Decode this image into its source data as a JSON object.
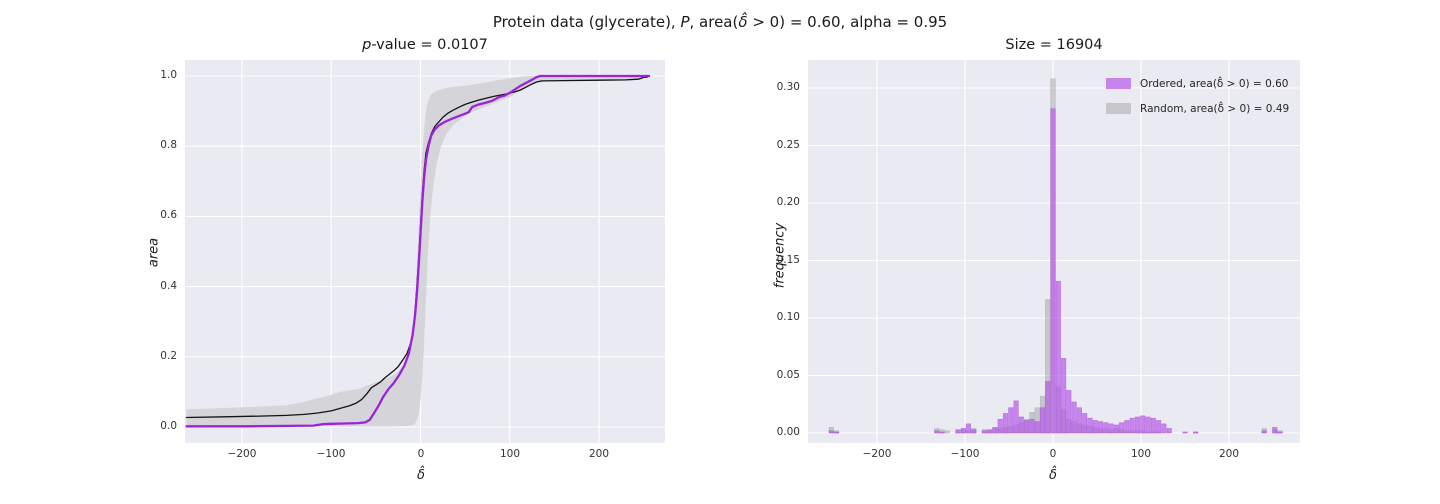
{
  "figure": {
    "title": {
      "prefix": "Protein data (glycerate), ",
      "p_var": "P",
      "mid": ", area(",
      "delta": "δ̂",
      "suffix": " > 0) = 0.60, alpha = 0.95"
    },
    "colors": {
      "panel_background": "#eaeaf2",
      "grid": "#ffffff",
      "ordered_line": "#9c22dd",
      "random_line": "#141414",
      "band_fill": "#d3d3d6",
      "ordered_bar": "rgba(186,92,235,0.72)",
      "random_bar": "rgba(150,150,150,0.42)"
    }
  },
  "chart_data": [
    {
      "type": "line",
      "title_italic": "p",
      "title_rest": "-value = 0.0107",
      "xlabel": "δ̂",
      "ylabel": "area",
      "xlim": [
        -265,
        275
      ],
      "ylim": [
        -0.04,
        1.045
      ],
      "grid": true,
      "xticks": {
        "values": [
          -200,
          -100,
          0,
          100,
          200
        ],
        "labels": [
          "−200",
          "−100",
          "0",
          "100",
          "200"
        ]
      },
      "yticks": {
        "values": [
          0,
          0.2,
          0.4,
          0.6,
          0.8,
          1.0
        ],
        "labels": [
          "0.0",
          "0.2",
          "0.4",
          "0.6",
          "0.8",
          "1.0"
        ]
      },
      "series": [
        {
          "name": "ordered-ecdf",
          "color": "#9c22dd",
          "width": 2.3,
          "points": [
            [
              -262,
              0.002
            ],
            [
              -200,
              0.002
            ],
            [
              -150,
              0.003
            ],
            [
              -120,
              0.004
            ],
            [
              -110,
              0.008
            ],
            [
              -100,
              0.009
            ],
            [
              -85,
              0.01
            ],
            [
              -70,
              0.011
            ],
            [
              -62,
              0.013
            ],
            [
              -57,
              0.02
            ],
            [
              -52,
              0.04
            ],
            [
              -47,
              0.06
            ],
            [
              -42,
              0.085
            ],
            [
              -36,
              0.108
            ],
            [
              -30,
              0.125
            ],
            [
              -24,
              0.148
            ],
            [
              -18,
              0.175
            ],
            [
              -13,
              0.21
            ],
            [
              -9,
              0.26
            ],
            [
              -6,
              0.32
            ],
            [
              -4,
              0.38
            ],
            [
              -2,
              0.46
            ],
            [
              0,
              0.55
            ],
            [
              2,
              0.64
            ],
            [
              4,
              0.71
            ],
            [
              6,
              0.76
            ],
            [
              9,
              0.8
            ],
            [
              12,
              0.83
            ],
            [
              16,
              0.848
            ],
            [
              21,
              0.86
            ],
            [
              27,
              0.869
            ],
            [
              34,
              0.877
            ],
            [
              41,
              0.884
            ],
            [
              48,
              0.891
            ],
            [
              54,
              0.897
            ],
            [
              58,
              0.912
            ],
            [
              64,
              0.918
            ],
            [
              72,
              0.923
            ],
            [
              80,
              0.929
            ],
            [
              88,
              0.94
            ],
            [
              94,
              0.944
            ],
            [
              100,
              0.952
            ],
            [
              106,
              0.962
            ],
            [
              112,
              0.972
            ],
            [
              118,
              0.98
            ],
            [
              124,
              0.988
            ],
            [
              130,
              0.997
            ],
            [
              134,
              1.0
            ],
            [
              256,
              1.0
            ]
          ]
        },
        {
          "name": "random-ecdf",
          "color": "#141414",
          "width": 1.3,
          "points": [
            [
              -262,
              0.027
            ],
            [
              -220,
              0.029
            ],
            [
              -180,
              0.031
            ],
            [
              -150,
              0.033
            ],
            [
              -130,
              0.036
            ],
            [
              -115,
              0.04
            ],
            [
              -100,
              0.046
            ],
            [
              -90,
              0.053
            ],
            [
              -80,
              0.06
            ],
            [
              -72,
              0.068
            ],
            [
              -66,
              0.078
            ],
            [
              -60,
              0.095
            ],
            [
              -55,
              0.112
            ],
            [
              -50,
              0.12
            ],
            [
              -45,
              0.128
            ],
            [
              -40,
              0.14
            ],
            [
              -35,
              0.15
            ],
            [
              -30,
              0.16
            ],
            [
              -25,
              0.172
            ],
            [
              -20,
              0.19
            ],
            [
              -15,
              0.21
            ],
            [
              -11,
              0.24
            ],
            [
              -8,
              0.28
            ],
            [
              -6,
              0.33
            ],
            [
              -4,
              0.4
            ],
            [
              -2,
              0.48
            ],
            [
              0,
              0.57
            ],
            [
              2,
              0.66
            ],
            [
              4,
              0.73
            ],
            [
              6,
              0.78
            ],
            [
              9,
              0.81
            ],
            [
              12,
              0.835
            ],
            [
              16,
              0.856
            ],
            [
              20,
              0.868
            ],
            [
              25,
              0.882
            ],
            [
              30,
              0.893
            ],
            [
              36,
              0.902
            ],
            [
              43,
              0.911
            ],
            [
              50,
              0.919
            ],
            [
              58,
              0.926
            ],
            [
              66,
              0.932
            ],
            [
              74,
              0.937
            ],
            [
              82,
              0.942
            ],
            [
              90,
              0.946
            ],
            [
              98,
              0.95
            ],
            [
              106,
              0.955
            ],
            [
              112,
              0.96
            ],
            [
              118,
              0.968
            ],
            [
              124,
              0.976
            ],
            [
              130,
              0.983
            ],
            [
              136,
              0.986
            ],
            [
              160,
              0.987
            ],
            [
              200,
              0.988
            ],
            [
              230,
              0.989
            ],
            [
              244,
              0.991
            ],
            [
              250,
              0.996
            ],
            [
              254,
              0.997
            ]
          ]
        }
      ],
      "band": {
        "name": "random-confidence-band",
        "color": "#d3d3d6",
        "opacity": 0.9,
        "points": [
          [
            -262,
            0.004,
            0.05
          ],
          [
            -220,
            0.004,
            0.054
          ],
          [
            -180,
            0.003,
            0.058
          ],
          [
            -150,
            0.003,
            0.062
          ],
          [
            -130,
            0.002,
            0.072
          ],
          [
            -115,
            0.002,
            0.082
          ],
          [
            -100,
            0.002,
            0.092
          ],
          [
            -90,
            0.001,
            0.1
          ],
          [
            -80,
            0.001,
            0.104
          ],
          [
            -70,
            0.001,
            0.108
          ],
          [
            -60,
            0.001,
            0.118
          ],
          [
            -50,
            0.001,
            0.128
          ],
          [
            -42,
            0.001,
            0.135
          ],
          [
            -35,
            0.001,
            0.142
          ],
          [
            -28,
            0.002,
            0.152
          ],
          [
            -21,
            0.002,
            0.168
          ],
          [
            -15,
            0.003,
            0.19
          ],
          [
            -11,
            0.004,
            0.23
          ],
          [
            -8,
            0.006,
            0.3
          ],
          [
            -6,
            0.01,
            0.37
          ],
          [
            -4,
            0.02,
            0.46
          ],
          [
            -2,
            0.04,
            0.57
          ],
          [
            0,
            0.08,
            0.68
          ],
          [
            2,
            0.14,
            0.78
          ],
          [
            4,
            0.24,
            0.85
          ],
          [
            6,
            0.36,
            0.9
          ],
          [
            8,
            0.48,
            0.925
          ],
          [
            11,
            0.6,
            0.945
          ],
          [
            14,
            0.68,
            0.952
          ],
          [
            18,
            0.75,
            0.958
          ],
          [
            23,
            0.8,
            0.962
          ],
          [
            29,
            0.835,
            0.966
          ],
          [
            36,
            0.858,
            0.969
          ],
          [
            44,
            0.875,
            0.971
          ],
          [
            52,
            0.889,
            0.973
          ],
          [
            60,
            0.9,
            0.976
          ],
          [
            70,
            0.91,
            0.98
          ],
          [
            80,
            0.92,
            0.985
          ],
          [
            90,
            0.93,
            0.99
          ],
          [
            100,
            0.94,
            0.994
          ],
          [
            108,
            0.952,
            0.997
          ],
          [
            116,
            0.963,
            0.999
          ],
          [
            124,
            0.974,
            1.0
          ],
          [
            132,
            0.982,
            1.0
          ],
          [
            140,
            0.985,
            0.999
          ],
          [
            170,
            0.986,
            0.997
          ],
          [
            200,
            0.987,
            0.997
          ],
          [
            230,
            0.988,
            0.997
          ],
          [
            244,
            0.99,
            0.998
          ],
          [
            250,
            0.994,
            1.0
          ],
          [
            254,
            0.995,
            1.0
          ]
        ]
      }
    },
    {
      "type": "bar",
      "title": "Size = 16904",
      "xlabel": "δ̂",
      "ylabel": "frequency",
      "xlim": [
        -278,
        281
      ],
      "ylim": [
        -0.006,
        0.323
      ],
      "grid": true,
      "bin_width": 6,
      "xticks": {
        "values": [
          -200,
          -100,
          0,
          100,
          200
        ],
        "labels": [
          "−200",
          "−100",
          "0",
          "100",
          "200"
        ]
      },
      "yticks": {
        "values": [
          0,
          0.05,
          0.1,
          0.15,
          0.2,
          0.25,
          0.3
        ],
        "labels": [
          "0.00",
          "0.05",
          "0.10",
          "0.15",
          "0.20",
          "0.25",
          "0.30"
        ]
      },
      "legend": [
        {
          "label": "Ordered, area(δ̂ > 0) = 0.60",
          "color": "rgba(186,92,235,0.72)"
        },
        {
          "label": "Random, area(δ̂ > 0) = 0.49",
          "color": "rgba(150,150,150,0.42)"
        }
      ],
      "bins": [
        [
          -252,
          0.002,
          0.005
        ],
        [
          -246,
          0.001,
          0.002
        ],
        [
          -132,
          0.002,
          0.004
        ],
        [
          -126,
          0.001,
          0.003
        ],
        [
          -120,
          0.0,
          0.002
        ],
        [
          -108,
          0.003,
          0.002
        ],
        [
          -102,
          0.004,
          0.003
        ],
        [
          -96,
          0.008,
          0.002
        ],
        [
          -90,
          0.003,
          0.004
        ],
        [
          -78,
          0.002,
          0.003
        ],
        [
          -72,
          0.003,
          0.002
        ],
        [
          -66,
          0.005,
          0.004
        ],
        [
          -60,
          0.012,
          0.004
        ],
        [
          -54,
          0.017,
          0.005
        ],
        [
          -48,
          0.022,
          0.006
        ],
        [
          -42,
          0.028,
          0.007
        ],
        [
          -36,
          0.014,
          0.009
        ],
        [
          -30,
          0.011,
          0.012
        ],
        [
          -24,
          0.012,
          0.018
        ],
        [
          -18,
          0.01,
          0.022
        ],
        [
          -12,
          0.022,
          0.032
        ],
        [
          -6,
          0.045,
          0.116
        ],
        [
          0,
          0.282,
          0.308
        ],
        [
          6,
          0.132,
          0.04
        ],
        [
          12,
          0.065,
          0.02
        ],
        [
          18,
          0.037,
          0.012
        ],
        [
          24,
          0.027,
          0.01
        ],
        [
          30,
          0.022,
          0.008
        ],
        [
          36,
          0.017,
          0.007
        ],
        [
          42,
          0.013,
          0.006
        ],
        [
          48,
          0.011,
          0.005
        ],
        [
          54,
          0.01,
          0.004
        ],
        [
          60,
          0.009,
          0.004
        ],
        [
          66,
          0.008,
          0.003
        ],
        [
          72,
          0.007,
          0.004
        ],
        [
          78,
          0.009,
          0.003
        ],
        [
          84,
          0.011,
          0.002
        ],
        [
          90,
          0.013,
          0.002
        ],
        [
          96,
          0.014,
          0.002
        ],
        [
          102,
          0.015,
          0.002
        ],
        [
          108,
          0.014,
          0.001
        ],
        [
          114,
          0.013,
          0.001
        ],
        [
          120,
          0.011,
          0.001
        ],
        [
          126,
          0.008,
          0.0
        ],
        [
          132,
          0.004,
          0.0
        ],
        [
          150,
          0.001,
          0.0
        ],
        [
          162,
          0.001,
          0.001
        ],
        [
          240,
          0.002,
          0.004
        ],
        [
          252,
          0.005,
          0.003
        ],
        [
          258,
          0.001,
          0.002
        ]
      ]
    }
  ]
}
